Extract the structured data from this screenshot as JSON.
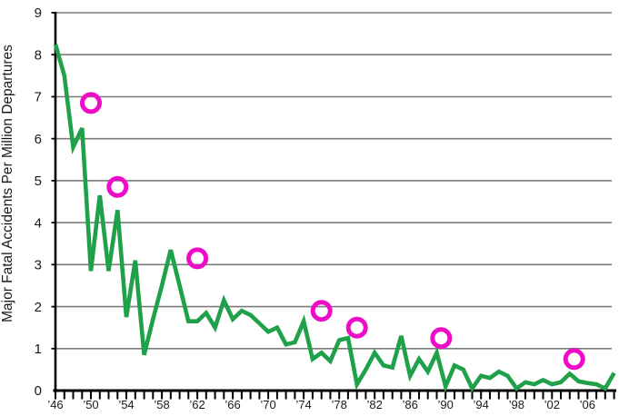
{
  "chart_data": {
    "type": "line",
    "ylabel": "Major Fatal Accidents Per Million Departures",
    "ylim": [
      0,
      9
    ],
    "xlim": [
      1946,
      2009
    ],
    "grid": {
      "horizontal": true,
      "values": [
        1,
        2,
        3,
        4,
        5,
        6,
        7,
        8,
        9
      ],
      "color": "#7b7b7b"
    },
    "y_ticks": {
      "values": [
        0,
        1,
        2,
        3,
        4,
        5,
        6,
        7,
        8,
        9
      ],
      "labels": [
        "0",
        "1",
        "2",
        "3",
        "4",
        "5",
        "6",
        "7",
        "8",
        "9"
      ]
    },
    "x_ticks": {
      "minor_tick_every_year": true,
      "first_year": 1946,
      "last_year": 2009,
      "labeled": [
        {
          "year": 1946,
          "label": "’46"
        },
        {
          "year": 1950,
          "label": "’50"
        },
        {
          "year": 1954,
          "label": "’54"
        },
        {
          "year": 1958,
          "label": "’58"
        },
        {
          "year": 1962,
          "label": "’62"
        },
        {
          "year": 1966,
          "label": "’66"
        },
        {
          "year": 1970,
          "label": "’70"
        },
        {
          "year": 1974,
          "label": "’74"
        },
        {
          "year": 1978,
          "label": "’78"
        },
        {
          "year": 1982,
          "label": "’82"
        },
        {
          "year": 1986,
          "label": "’86"
        },
        {
          "year": 1990,
          "label": "’90"
        },
        {
          "year": 1994,
          "label": "’94"
        },
        {
          "year": 1998,
          "label": "’98"
        },
        {
          "year": 2002,
          "label": "’02"
        },
        {
          "year": 2006,
          "label": "’06"
        }
      ]
    },
    "axis_color": "#000000",
    "legend": "none",
    "series": [
      {
        "name": "major fatal accidents per million departures",
        "type": "line",
        "color": "#1fa14a",
        "points": [
          [
            1946,
            8.25
          ],
          [
            1947,
            7.5
          ],
          [
            1948,
            5.8
          ],
          [
            1949,
            6.25
          ],
          [
            1950,
            2.85
          ],
          [
            1951,
            4.65
          ],
          [
            1952,
            2.85
          ],
          [
            1953,
            4.3
          ],
          [
            1954,
            1.75
          ],
          [
            1955,
            3.1
          ],
          [
            1956,
            0.85
          ],
          [
            1957,
            1.7
          ],
          [
            1958,
            2.5
          ],
          [
            1959,
            3.35
          ],
          [
            1960,
            2.5
          ],
          [
            1961,
            1.65
          ],
          [
            1962,
            1.65
          ],
          [
            1963,
            1.85
          ],
          [
            1964,
            1.5
          ],
          [
            1965,
            2.15
          ],
          [
            1966,
            1.7
          ],
          [
            1967,
            1.9
          ],
          [
            1968,
            1.8
          ],
          [
            1969,
            1.6
          ],
          [
            1970,
            1.4
          ],
          [
            1971,
            1.5
          ],
          [
            1972,
            1.1
          ],
          [
            1973,
            1.15
          ],
          [
            1974,
            1.65
          ],
          [
            1975,
            0.75
          ],
          [
            1976,
            0.9
          ],
          [
            1977,
            0.7
          ],
          [
            1978,
            1.2
          ],
          [
            1979,
            1.25
          ],
          [
            1980,
            0.15
          ],
          [
            1981,
            0.5
          ],
          [
            1982,
            0.9
          ],
          [
            1983,
            0.6
          ],
          [
            1984,
            0.55
          ],
          [
            1985,
            1.3
          ],
          [
            1986,
            0.35
          ],
          [
            1987,
            0.75
          ],
          [
            1988,
            0.45
          ],
          [
            1989,
            0.9
          ],
          [
            1990,
            0.1
          ],
          [
            1991,
            0.6
          ],
          [
            1992,
            0.5
          ],
          [
            1993,
            0.05
          ],
          [
            1994,
            0.35
          ],
          [
            1995,
            0.3
          ],
          [
            1996,
            0.45
          ],
          [
            1997,
            0.35
          ],
          [
            1998,
            0.05
          ],
          [
            1999,
            0.2
          ],
          [
            2000,
            0.15
          ],
          [
            2001,
            0.25
          ],
          [
            2002,
            0.15
          ],
          [
            2003,
            0.2
          ],
          [
            2004,
            0.4
          ],
          [
            2005,
            0.22
          ],
          [
            2006,
            0.18
          ],
          [
            2007,
            0.15
          ],
          [
            2008,
            0.05
          ],
          [
            2009,
            0.42
          ]
        ]
      }
    ],
    "annotations": {
      "name": "ring markers",
      "shape": "circle-outline",
      "color": "#ee0cc8",
      "points": [
        [
          1950,
          6.85
        ],
        [
          1953,
          4.85
        ],
        [
          1962,
          3.15
        ],
        [
          1976,
          1.9
        ],
        [
          1980,
          1.5
        ],
        [
          1989.5,
          1.25
        ],
        [
          2004.5,
          0.75
        ]
      ]
    }
  }
}
